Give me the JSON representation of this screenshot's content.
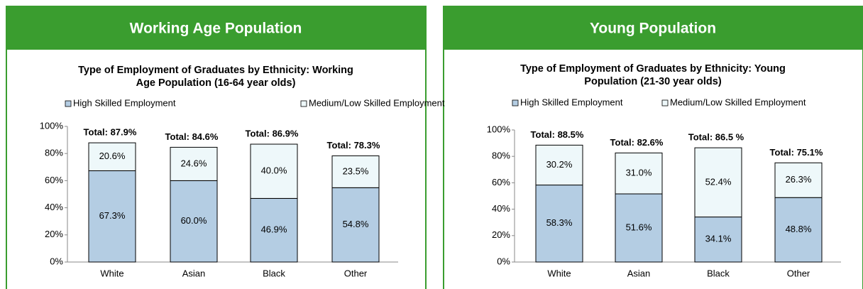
{
  "chart_data": [
    {
      "type": "stacked_bar",
      "header": "Working Age Population",
      "title": [
        "Type of Employment of Graduates by Ethnicity: Working",
        "Age Population (16-64 year olds)"
      ],
      "categories": [
        "White",
        "Asian",
        "Black",
        "Other"
      ],
      "series": [
        {
          "name": "High Skilled Employment",
          "color": "#b4cde3",
          "values": [
            67.3,
            60.0,
            46.9,
            54.8
          ],
          "value_labels": [
            "67.3%",
            "60.0%",
            "46.9%",
            "54.8%"
          ]
        },
        {
          "name": "Medium/Low Skilled Employment",
          "color": "#eef8fa",
          "values": [
            20.6,
            24.6,
            40.0,
            23.5
          ],
          "value_labels": [
            "20.6%",
            "24.6%",
            "40.0%",
            "23.5%"
          ]
        }
      ],
      "annotations": [
        "Total: 87.9%",
        "Total: 84.6%",
        "Total: 86.9%",
        "Total: 78.3%"
      ],
      "ylim": [
        0,
        100
      ],
      "yticks": [
        {
          "value": 0,
          "label": "0%"
        },
        {
          "value": 20,
          "label": "20%"
        },
        {
          "value": 40,
          "label": "40%"
        },
        {
          "value": 60,
          "label": "60%"
        },
        {
          "value": 80,
          "label": "80%"
        },
        {
          "value": 100,
          "label": "100%"
        }
      ]
    },
    {
      "type": "stacked_bar",
      "header": "Young Population",
      "title": [
        "Type of Employment of Graduates by Ethnicity: Young",
        "Population (21-30 year olds)"
      ],
      "categories": [
        "White",
        "Asian",
        "Black",
        "Other"
      ],
      "series": [
        {
          "name": "High Skilled Employment",
          "color": "#b4cde3",
          "values": [
            58.3,
            51.6,
            34.1,
            48.8
          ],
          "value_labels": [
            "58.3%",
            "51.6%",
            "34.1%",
            "48.8%"
          ]
        },
        {
          "name": "Medium/Low Skilled Employment",
          "color": "#eef8fa",
          "values": [
            30.2,
            31.0,
            52.4,
            26.3
          ],
          "value_labels": [
            "30.2%",
            "31.0%",
            "52.4%",
            "26.3%"
          ]
        }
      ],
      "annotations": [
        "Total: 88.5%",
        "Total: 82.6%",
        "Total: 86.5 %",
        "Total: 75.1%"
      ],
      "ylim": [
        0,
        100
      ],
      "yticks": [
        {
          "value": 0,
          "label": "0%"
        },
        {
          "value": 20,
          "label": "20%"
        },
        {
          "value": 40,
          "label": "40%"
        },
        {
          "value": 60,
          "label": "60%"
        },
        {
          "value": 80,
          "label": "80%"
        },
        {
          "value": 100,
          "label": "100%"
        }
      ]
    }
  ]
}
